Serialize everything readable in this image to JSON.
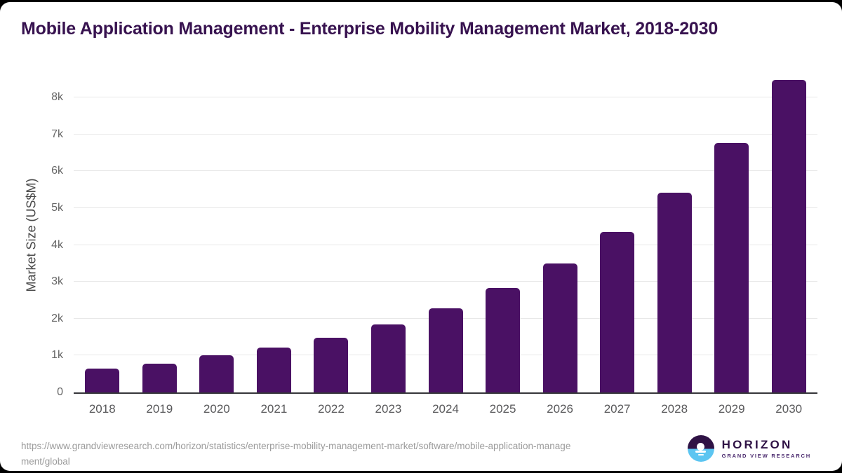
{
  "title": "Mobile Application Management - Enterprise Mobility Management Market, 2018-2030",
  "source": {
    "line1": "https://www.grandviewresearch.com/horizon/statistics/enterprise-mobility-management-market/software/mobile-application-manage",
    "line2": "ment/global"
  },
  "logo": {
    "name": "HORIZON",
    "subtitle": "GRAND VIEW RESEARCH"
  },
  "colors": {
    "bar": "#4a1164",
    "title": "#37124f",
    "gridline": "#e8e8e8",
    "axis": "#35353a",
    "tick": "#666666",
    "source": "#9b9b9b",
    "logo_purple": "#2f1245",
    "logo_blue": "#5cc5f1"
  },
  "chart_data": {
    "type": "bar",
    "title": "Mobile Application Management - Enterprise Mobility Management Market, 2018-2030",
    "xlabel": "",
    "ylabel": "Market Size (US$M)",
    "categories": [
      "2018",
      "2019",
      "2020",
      "2021",
      "2022",
      "2023",
      "2024",
      "2025",
      "2026",
      "2027",
      "2028",
      "2029",
      "2030"
    ],
    "values": [
      640,
      780,
      1000,
      1220,
      1490,
      1840,
      2280,
      2830,
      3500,
      4360,
      5410,
      6760,
      8470
    ],
    "yticks": [
      "0",
      "1k",
      "2k",
      "3k",
      "4k",
      "5k",
      "6k",
      "7k",
      "8k"
    ],
    "ytick_values": [
      0,
      1000,
      2000,
      3000,
      4000,
      5000,
      6000,
      7000,
      8000
    ],
    "ylim": [
      0,
      8535
    ],
    "grid": "horizontal",
    "legend": false,
    "bar_color": "#4a1164"
  }
}
